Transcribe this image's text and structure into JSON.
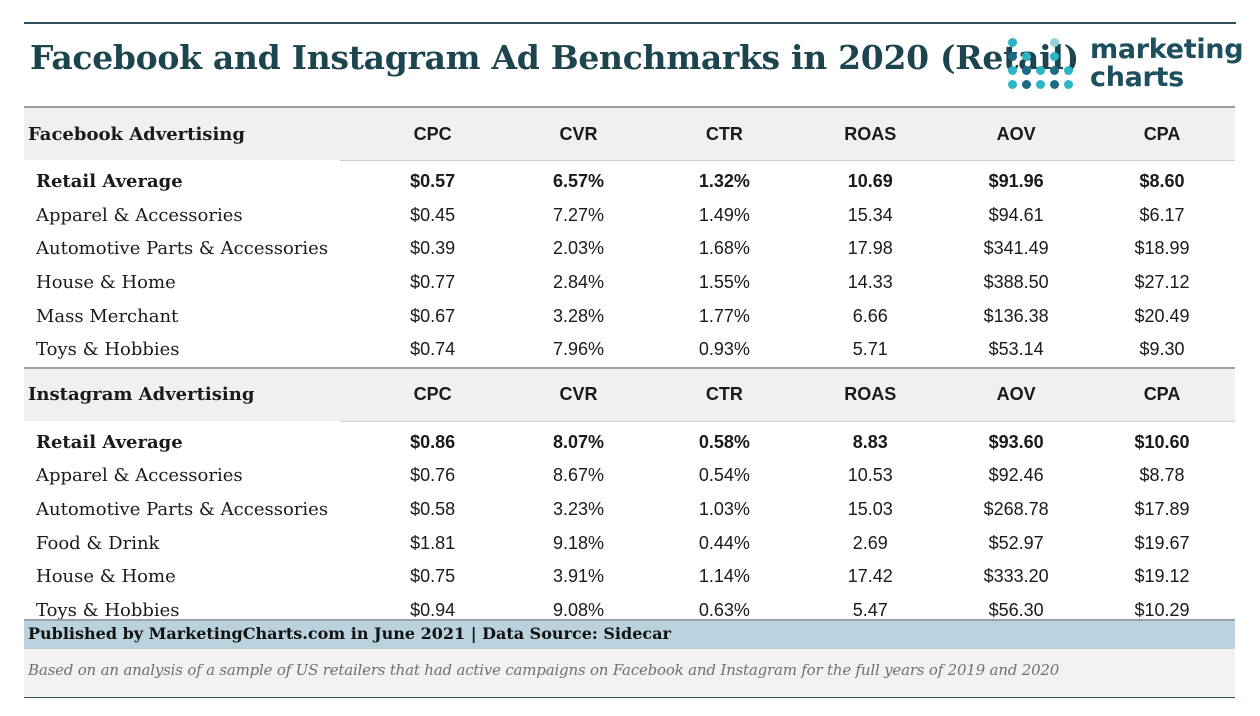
{
  "title": "Facebook and Instagram Ad Benchmarks in 2020 (Retail)",
  "logo": {
    "line1": "marketing",
    "line2": "charts",
    "colors": [
      "#2ab7c3",
      "#1d6a85",
      "#93d3d8"
    ]
  },
  "chart_data": {
    "type": "table",
    "columns": [
      "CPC",
      "CVR",
      "CTR",
      "ROAS",
      "AOV",
      "CPA"
    ],
    "sections": [
      {
        "name": "Facebook Advertising",
        "rows": [
          {
            "label": "Retail Average",
            "bold": true,
            "values": [
              "$0.57",
              "6.57%",
              "1.32%",
              "10.69",
              "$91.96",
              "$8.60"
            ]
          },
          {
            "label": "Apparel & Accessories",
            "values": [
              "$0.45",
              "7.27%",
              "1.49%",
              "15.34",
              "$94.61",
              "$6.17"
            ]
          },
          {
            "label": "Automotive Parts & Accessories",
            "values": [
              "$0.39",
              "2.03%",
              "1.68%",
              "17.98",
              "$341.49",
              "$18.99"
            ]
          },
          {
            "label": "House & Home",
            "values": [
              "$0.77",
              "2.84%",
              "1.55%",
              "14.33",
              "$388.50",
              "$27.12"
            ]
          },
          {
            "label": "Mass Merchant",
            "values": [
              "$0.67",
              "3.28%",
              "1.77%",
              "6.66",
              "$136.38",
              "$20.49"
            ]
          },
          {
            "label": "Toys & Hobbies",
            "values": [
              "$0.74",
              "7.96%",
              "0.93%",
              "5.71",
              "$53.14",
              "$9.30"
            ]
          }
        ]
      },
      {
        "name": "Instagram Advertising",
        "rows": [
          {
            "label": "Retail Average",
            "bold": true,
            "values": [
              "$0.86",
              "8.07%",
              "0.58%",
              "8.83",
              "$93.60",
              "$10.60"
            ]
          },
          {
            "label": "Apparel & Accessories",
            "values": [
              "$0.76",
              "8.67%",
              "0.54%",
              "10.53",
              "$92.46",
              "$8.78"
            ]
          },
          {
            "label": "Automotive Parts & Accessories",
            "values": [
              "$0.58",
              "3.23%",
              "1.03%",
              "15.03",
              "$268.78",
              "$17.89"
            ]
          },
          {
            "label": "Food & Drink",
            "values": [
              "$1.81",
              "9.18%",
              "0.44%",
              "2.69",
              "$52.97",
              "$19.67"
            ]
          },
          {
            "label": "House & Home",
            "values": [
              "$0.75",
              "3.91%",
              "1.14%",
              "17.42",
              "$333.20",
              "$19.12"
            ]
          },
          {
            "label": "Toys & Hobbies",
            "values": [
              "$0.94",
              "9.08%",
              "0.63%",
              "5.47",
              "$56.30",
              "$10.29"
            ]
          }
        ]
      }
    ]
  },
  "footer": {
    "source": "Published by MarketingCharts.com in June 2021 | Data Source: Sidecar",
    "note": "Based on an analysis of a sample of US retailers that had active campaigns on Facebook and Instagram for the full years of 2019 and 2020"
  }
}
